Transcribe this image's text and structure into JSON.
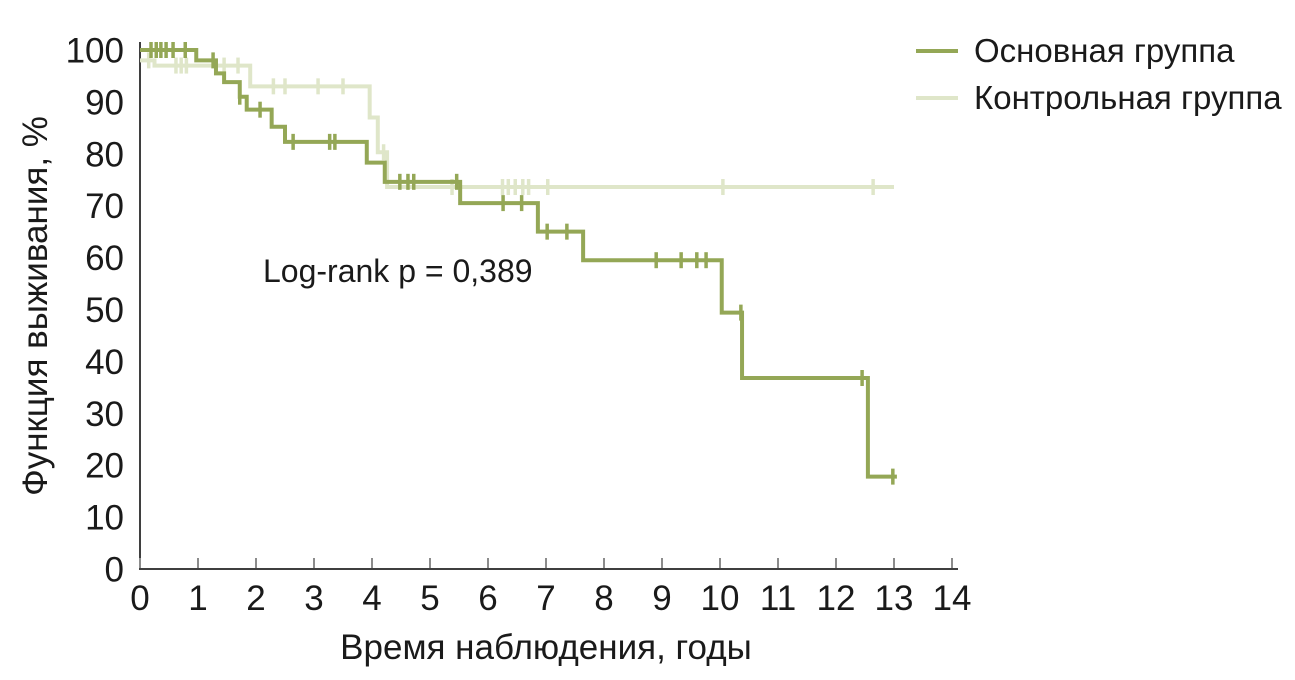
{
  "chart_data": {
    "type": "line",
    "subtype": "kaplan-meier-step",
    "title": "",
    "xlabel": "Время наблюдения, годы",
    "ylabel": "Функция выживания, %",
    "annotation": "Log-rank p = 0,389",
    "xlim": [
      0,
      14
    ],
    "ylim": [
      0,
      100
    ],
    "x_ticks": [
      0,
      1,
      2,
      3,
      4,
      5,
      6,
      7,
      8,
      9,
      10,
      11,
      12,
      13,
      14
    ],
    "y_ticks": [
      0,
      10,
      20,
      30,
      40,
      50,
      60,
      70,
      80,
      90,
      100
    ],
    "grid": false,
    "legend_position": "top-right",
    "series": [
      {
        "name": "Основная группа",
        "color": "#94a756",
        "steps": [
          [
            0,
            100
          ],
          [
            0.97,
            98
          ],
          [
            1.31,
            95.5
          ],
          [
            1.45,
            93.8
          ],
          [
            1.72,
            91
          ],
          [
            1.84,
            88.5
          ],
          [
            2.27,
            85.2
          ],
          [
            2.5,
            82.3
          ],
          [
            3.91,
            78.3
          ],
          [
            4.22,
            74.6
          ],
          [
            5.52,
            70.5
          ],
          [
            6.86,
            65
          ],
          [
            7.64,
            59.5
          ],
          [
            10.03,
            49.4
          ],
          [
            10.38,
            36.8
          ],
          [
            12.55,
            17.8
          ]
        ],
        "end_x": 13.05,
        "censors": [
          [
            0.19,
            100
          ],
          [
            0.28,
            100
          ],
          [
            0.36,
            100
          ],
          [
            0.45,
            100
          ],
          [
            0.57,
            100
          ],
          [
            0.78,
            100
          ],
          [
            1.26,
            98
          ],
          [
            1.72,
            91
          ],
          [
            2.07,
            88.5
          ],
          [
            2.64,
            82.3
          ],
          [
            3.27,
            82.3
          ],
          [
            3.36,
            82.3
          ],
          [
            4.48,
            74.6
          ],
          [
            4.62,
            74.6
          ],
          [
            4.72,
            74.6
          ],
          [
            5.46,
            74.6
          ],
          [
            6.26,
            70.5
          ],
          [
            6.58,
            70.5
          ],
          [
            7.02,
            65
          ],
          [
            7.36,
            65
          ],
          [
            8.9,
            59.5
          ],
          [
            9.33,
            59.5
          ],
          [
            9.6,
            59.5
          ],
          [
            9.76,
            59.5
          ],
          [
            10.36,
            49.4
          ],
          [
            12.45,
            36.8
          ],
          [
            12.98,
            17.8
          ]
        ]
      },
      {
        "name": "Контрольная группа",
        "color": "#dfe6c9",
        "steps": [
          [
            0,
            98
          ],
          [
            0.25,
            97
          ],
          [
            1.9,
            93
          ],
          [
            3.96,
            87
          ],
          [
            4.1,
            80.3
          ],
          [
            4.26,
            73.6
          ]
        ],
        "end_x": 13.0,
        "censors": [
          [
            0.15,
            98
          ],
          [
            0.62,
            97
          ],
          [
            0.71,
            97
          ],
          [
            0.8,
            97
          ],
          [
            1.45,
            97
          ],
          [
            1.69,
            97
          ],
          [
            2.3,
            93
          ],
          [
            2.5,
            93
          ],
          [
            3.07,
            93
          ],
          [
            3.5,
            93
          ],
          [
            4.2,
            80.3
          ],
          [
            5.38,
            73.6
          ],
          [
            6.25,
            73.6
          ],
          [
            6.35,
            73.6
          ],
          [
            6.47,
            73.6
          ],
          [
            6.6,
            73.6
          ],
          [
            6.7,
            73.6
          ],
          [
            7.03,
            73.6
          ],
          [
            10.05,
            73.6
          ],
          [
            12.64,
            73.6
          ]
        ]
      }
    ]
  },
  "colors": {
    "background": "#ffffff",
    "axis": "#3f3f3f",
    "tick": "#8c8c8c",
    "text": "#1a1a1a"
  }
}
